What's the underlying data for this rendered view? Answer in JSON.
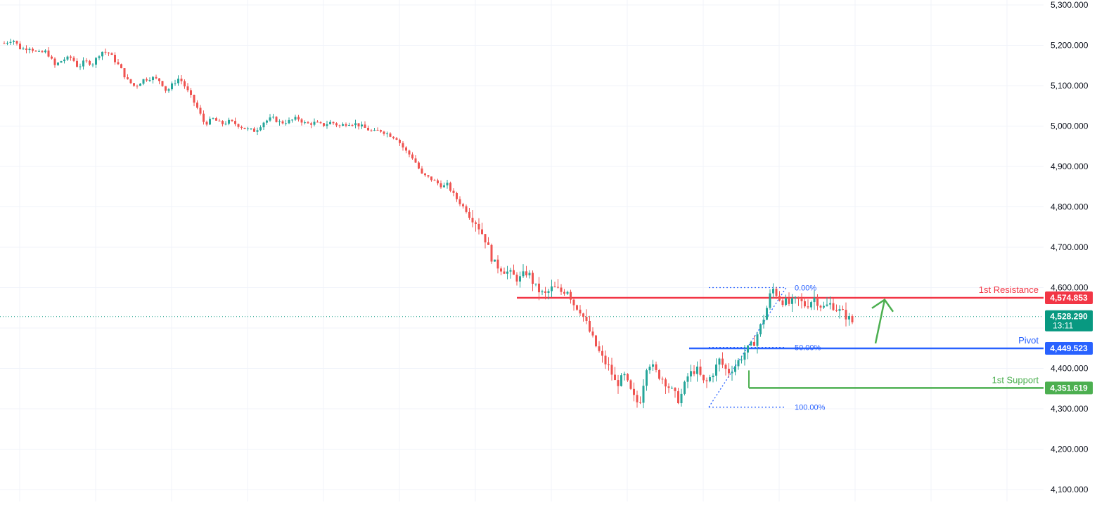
{
  "chart_data": {
    "type": "candlestick",
    "price_axis": {
      "ticks": [
        "5,300.000",
        "5,200.000",
        "5,100.000",
        "5,000.000",
        "4,900.000",
        "4,800.000",
        "4,700.000",
        "4,600.000",
        "4,400.000",
        "4,300.000",
        "4,200.000",
        "4,100.000"
      ],
      "tick_values": [
        5300,
        5200,
        5100,
        5000,
        4900,
        4800,
        4700,
        4600,
        4400,
        4300,
        4200,
        4100
      ],
      "range": [
        4090,
        5310
      ]
    },
    "grid": true,
    "colors": {
      "up": "#26a69a",
      "down": "#ef5350",
      "resistance": "#f23645",
      "pivot": "#2962ff",
      "support": "#4caf50",
      "current": "#089981",
      "arrow": "#4caf50"
    },
    "current_price": {
      "value": 4528.29,
      "label": "4,528.290",
      "countdown": "13:11"
    },
    "levels": [
      {
        "name": "1st Resistance",
        "value": 4574.853,
        "label": "4,574.853",
        "color": "#f23645"
      },
      {
        "name": "Pivot",
        "value": 4449.523,
        "label": "4,449.523",
        "color": "#2962ff"
      },
      {
        "name": "1st Support",
        "value": 4351.619,
        "label": "4,351.619",
        "color": "#4caf50"
      }
    ],
    "fibonacci": [
      {
        "label": "0.00%",
        "value": 4600
      },
      {
        "label": "50.00%",
        "value": 4452
      },
      {
        "label": "100.00%",
        "value": 4304
      }
    ],
    "annotation": {
      "type": "arrow",
      "direction": "up",
      "from": 4462,
      "to": 4570
    },
    "close_path": [
      [
        0,
        5205
      ],
      [
        8,
        5215
      ],
      [
        16,
        5190
      ],
      [
        24,
        5195
      ],
      [
        32,
        5180
      ],
      [
        40,
        5185
      ],
      [
        48,
        5150
      ],
      [
        56,
        5165
      ],
      [
        64,
        5170
      ],
      [
        70,
        5145
      ],
      [
        76,
        5160
      ],
      [
        84,
        5155
      ],
      [
        92,
        5185
      ],
      [
        100,
        5180
      ],
      [
        104,
        5165
      ],
      [
        110,
        5145
      ],
      [
        116,
        5115
      ],
      [
        124,
        5098
      ],
      [
        132,
        5115
      ],
      [
        140,
        5120
      ],
      [
        148,
        5112
      ],
      [
        154,
        5085
      ],
      [
        160,
        5105
      ],
      [
        166,
        5120
      ],
      [
        172,
        5095
      ],
      [
        178,
        5068
      ],
      [
        184,
        5040
      ],
      [
        190,
        5005
      ],
      [
        198,
        5018
      ],
      [
        206,
        5005
      ],
      [
        214,
        5012
      ],
      [
        222,
        5002
      ],
      [
        230,
        4992
      ],
      [
        238,
        4988
      ],
      [
        246,
        5010
      ],
      [
        254,
        5020
      ],
      [
        262,
        5008
      ],
      [
        270,
        5012
      ],
      [
        278,
        5020
      ],
      [
        286,
        5005
      ],
      [
        294,
        5008
      ],
      [
        302,
        5002
      ],
      [
        310,
        5010
      ],
      [
        318,
        5000
      ],
      [
        326,
        5008
      ],
      [
        334,
        5005
      ],
      [
        342,
        4995
      ],
      [
        350,
        4985
      ],
      [
        356,
        4990
      ],
      [
        364,
        4980
      ],
      [
        372,
        4970
      ],
      [
        380,
        4940
      ],
      [
        388,
        4920
      ],
      [
        396,
        4880
      ],
      [
        404,
        4870
      ],
      [
        410,
        4860
      ],
      [
        416,
        4850
      ],
      [
        420,
        4855
      ],
      [
        426,
        4830
      ],
      [
        432,
        4810
      ],
      [
        440,
        4785
      ],
      [
        448,
        4760
      ],
      [
        456,
        4720
      ],
      [
        464,
        4660
      ],
      [
        470,
        4650
      ],
      [
        476,
        4640
      ],
      [
        482,
        4630
      ],
      [
        488,
        4620
      ],
      [
        496,
        4640
      ],
      [
        504,
        4600
      ],
      [
        512,
        4580
      ],
      [
        520,
        4600
      ],
      [
        528,
        4590
      ],
      [
        534,
        4595
      ],
      [
        540,
        4560
      ],
      [
        546,
        4545
      ],
      [
        552,
        4510
      ],
      [
        560,
        4460
      ],
      [
        568,
        4420
      ],
      [
        574,
        4400
      ],
      [
        580,
        4360
      ],
      [
        588,
        4380
      ],
      [
        596,
        4330
      ],
      [
        602,
        4310
      ],
      [
        610,
        4420
      ],
      [
        618,
        4390
      ],
      [
        626,
        4370
      ],
      [
        634,
        4340
      ],
      [
        640,
        4320
      ],
      [
        648,
        4380
      ],
      [
        656,
        4400
      ],
      [
        664,
        4360
      ],
      [
        670,
        4380
      ],
      [
        678,
        4420
      ],
      [
        686,
        4390
      ],
      [
        694,
        4410
      ],
      [
        702,
        4440
      ],
      [
        710,
        4460
      ],
      [
        718,
        4510
      ],
      [
        722,
        4540
      ],
      [
        728,
        4600
      ],
      [
        736,
        4570
      ],
      [
        744,
        4560
      ],
      [
        752,
        4570
      ],
      [
        760,
        4555
      ],
      [
        768,
        4575
      ],
      [
        776,
        4550
      ],
      [
        784,
        4560
      ],
      [
        790,
        4545
      ],
      [
        796,
        4535
      ],
      [
        802,
        4520
      ],
      [
        806,
        4510
      ]
    ]
  }
}
